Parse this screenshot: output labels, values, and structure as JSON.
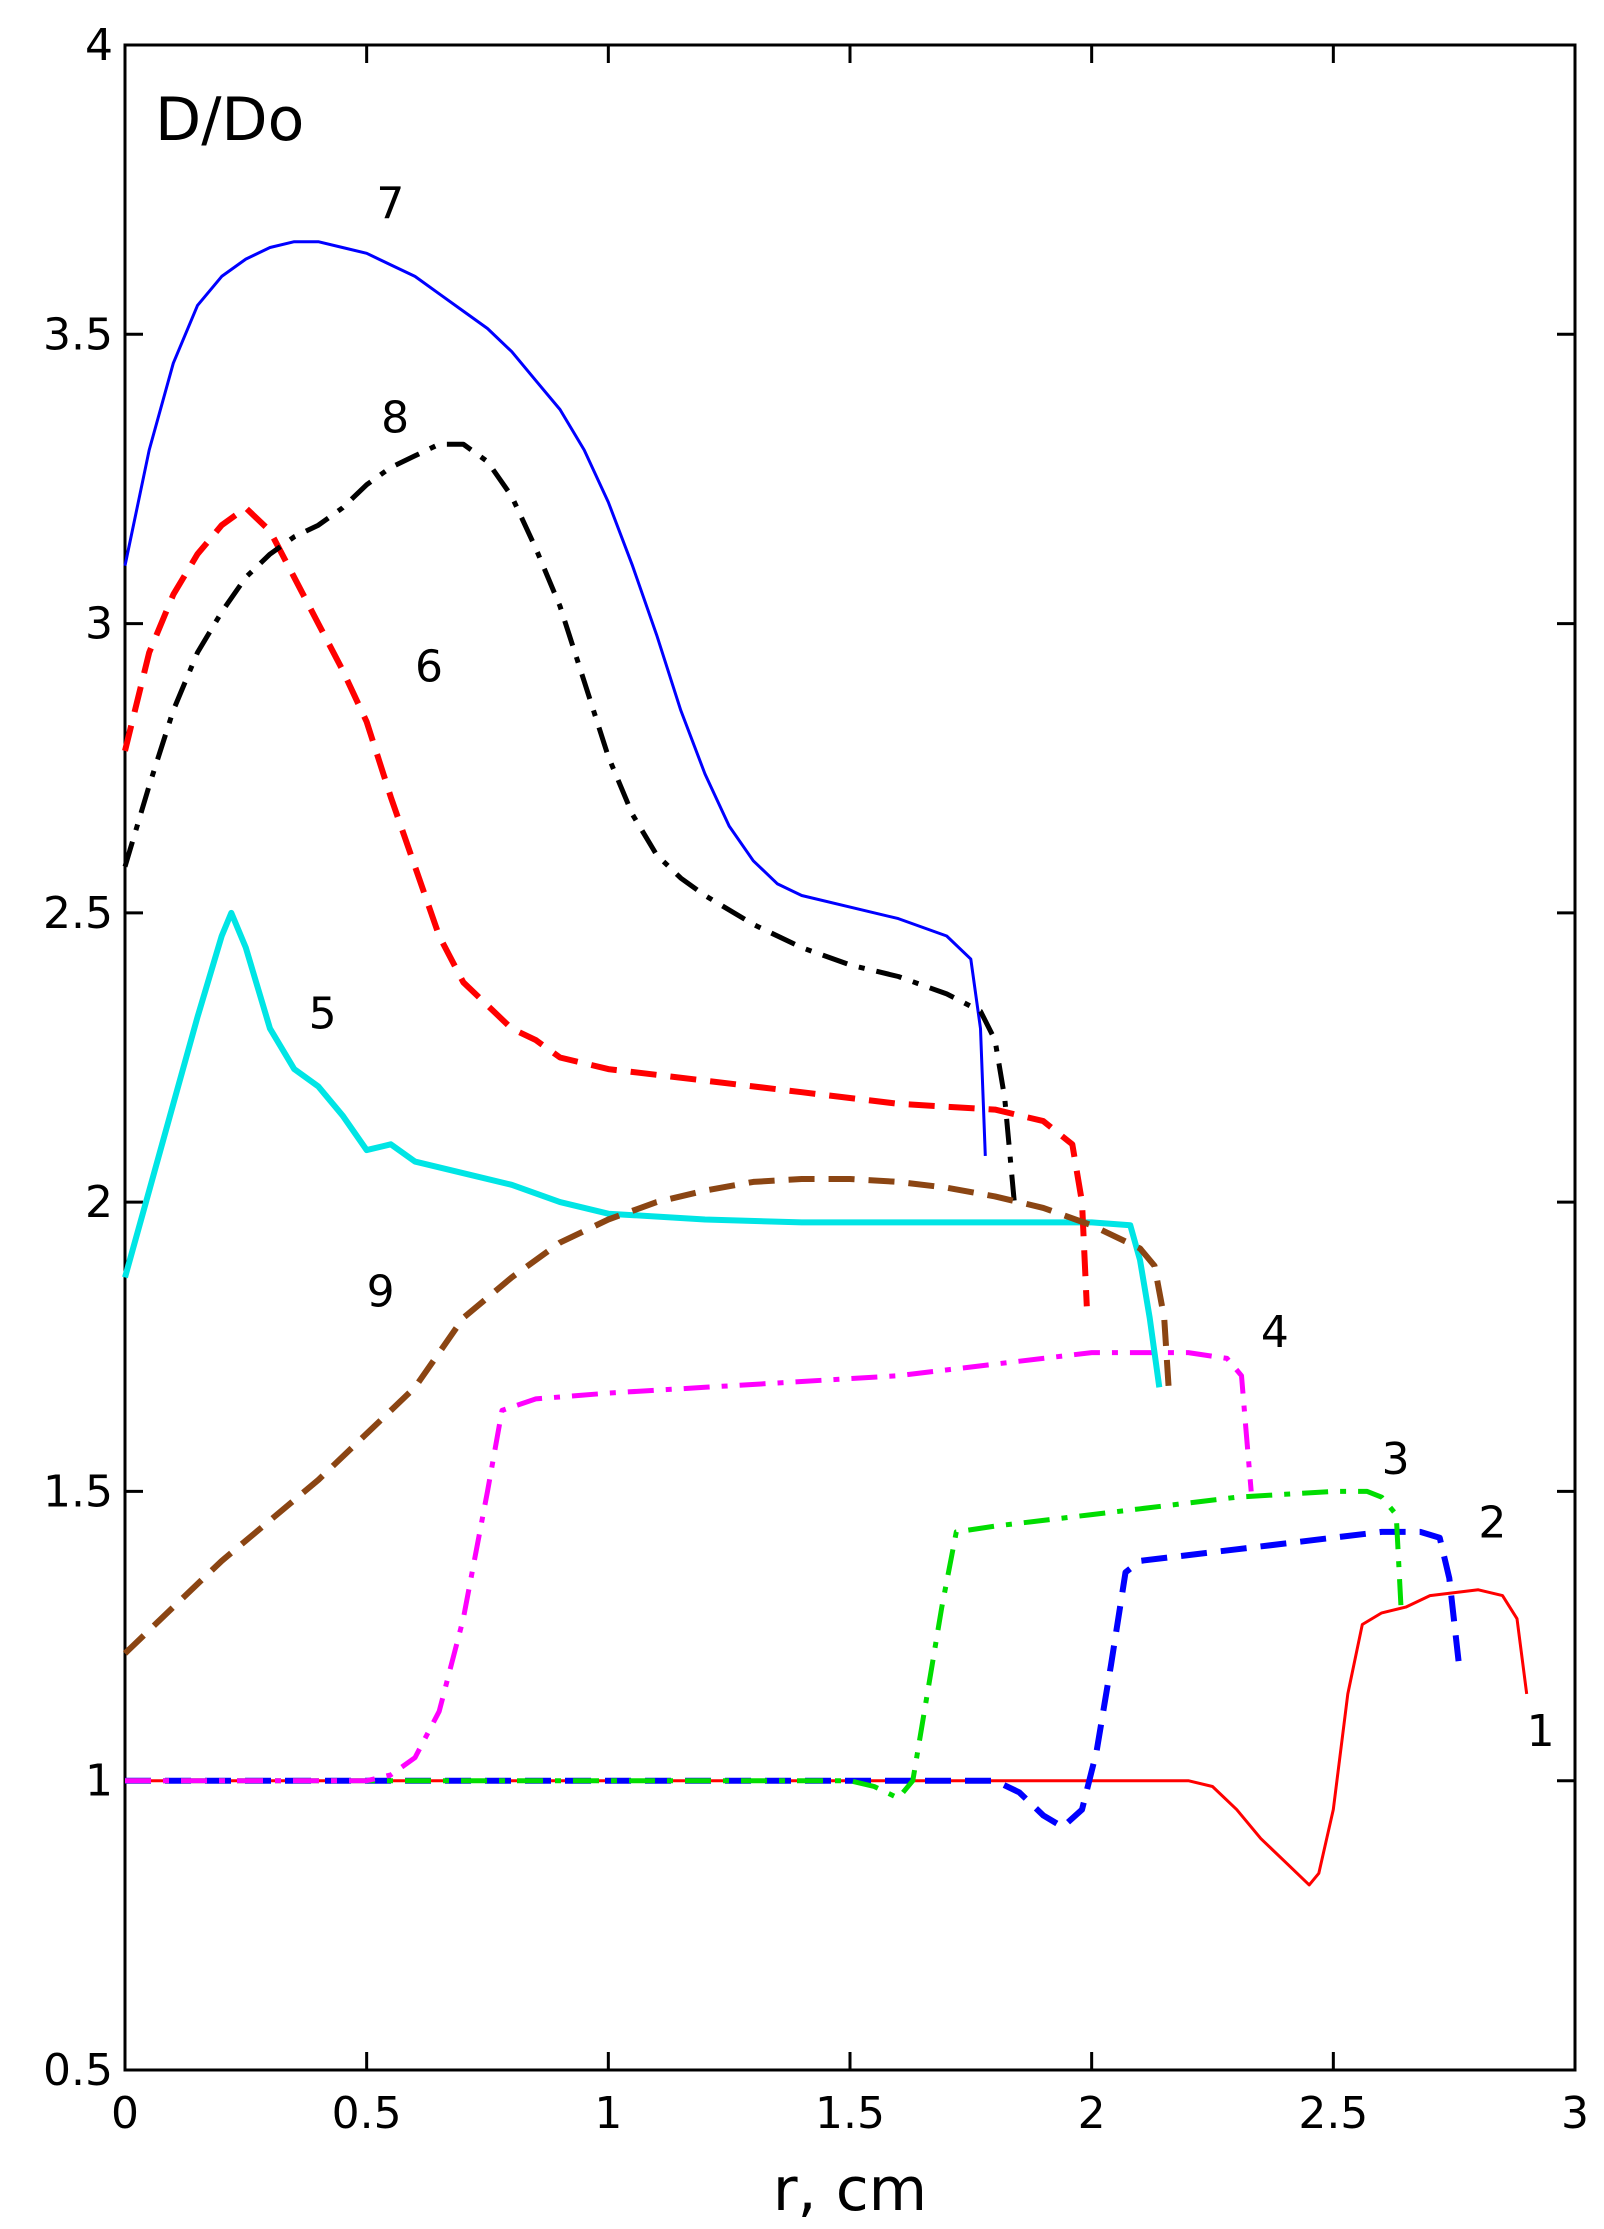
{
  "chart_data": {
    "type": "line",
    "title": "",
    "ylabel": "D/Do",
    "xlabel": "r, cm",
    "xlim": [
      0,
      3
    ],
    "ylim": [
      0.5,
      4
    ],
    "grid": false,
    "x_ticks": [
      {
        "value": 0,
        "label": "0"
      },
      {
        "value": 0.5,
        "label": "0.5"
      },
      {
        "value": 1,
        "label": "1"
      },
      {
        "value": 1.5,
        "label": "1.5"
      },
      {
        "value": 2,
        "label": "2"
      },
      {
        "value": 2.5,
        "label": "2.5"
      },
      {
        "value": 3,
        "label": "3"
      }
    ],
    "y_ticks": [
      {
        "value": 0.5,
        "label": "0.5"
      },
      {
        "value": 1,
        "label": "1"
      },
      {
        "value": 1.5,
        "label": "1.5"
      },
      {
        "value": 2,
        "label": "2"
      },
      {
        "value": 2.5,
        "label": "2.5"
      },
      {
        "value": 3,
        "label": "3"
      },
      {
        "value": 3.5,
        "label": "3.5"
      },
      {
        "value": 4,
        "label": "4"
      }
    ],
    "series": [
      {
        "label": "1",
        "color": "#ff0000",
        "dash": "solid",
        "width": 3,
        "label_pos": [
          2.9,
          1.06
        ],
        "points": [
          [
            0,
            1
          ],
          [
            0.5,
            1
          ],
          [
            1,
            1
          ],
          [
            1.5,
            1
          ],
          [
            2,
            1
          ],
          [
            2.2,
            1
          ],
          [
            2.25,
            0.99
          ],
          [
            2.3,
            0.95
          ],
          [
            2.35,
            0.9
          ],
          [
            2.4,
            0.86
          ],
          [
            2.45,
            0.82
          ],
          [
            2.47,
            0.84
          ],
          [
            2.5,
            0.95
          ],
          [
            2.53,
            1.15
          ],
          [
            2.56,
            1.27
          ],
          [
            2.6,
            1.29
          ],
          [
            2.65,
            1.3
          ],
          [
            2.7,
            1.32
          ],
          [
            2.8,
            1.33
          ],
          [
            2.85,
            1.32
          ],
          [
            2.88,
            1.28
          ],
          [
            2.9,
            1.15
          ]
        ]
      },
      {
        "label": "2",
        "color": "#0000ff",
        "dash": "dashed",
        "width": 6,
        "label_pos": [
          2.8,
          1.42
        ],
        "points": [
          [
            0,
            1
          ],
          [
            0.5,
            1
          ],
          [
            1,
            1
          ],
          [
            1.5,
            1
          ],
          [
            1.8,
            1
          ],
          [
            1.85,
            0.98
          ],
          [
            1.9,
            0.94
          ],
          [
            1.94,
            0.92
          ],
          [
            1.98,
            0.95
          ],
          [
            2.01,
            1.05
          ],
          [
            2.04,
            1.2
          ],
          [
            2.07,
            1.36
          ],
          [
            2.1,
            1.38
          ],
          [
            2.2,
            1.39
          ],
          [
            2.3,
            1.4
          ],
          [
            2.4,
            1.41
          ],
          [
            2.5,
            1.42
          ],
          [
            2.6,
            1.43
          ],
          [
            2.68,
            1.43
          ],
          [
            2.72,
            1.42
          ],
          [
            2.74,
            1.35
          ],
          [
            2.76,
            1.2
          ]
        ]
      },
      {
        "label": "3",
        "color": "#00dd00",
        "dash": "dashdot",
        "width": 5,
        "label_pos": [
          2.6,
          1.53
        ],
        "points": [
          [
            0,
            1
          ],
          [
            0.5,
            1
          ],
          [
            1,
            1
          ],
          [
            1.5,
            1
          ],
          [
            1.55,
            0.99
          ],
          [
            1.6,
            0.97
          ],
          [
            1.63,
            1.0
          ],
          [
            1.66,
            1.15
          ],
          [
            1.69,
            1.3
          ],
          [
            1.72,
            1.43
          ],
          [
            1.8,
            1.44
          ],
          [
            1.9,
            1.45
          ],
          [
            2,
            1.46
          ],
          [
            2.1,
            1.47
          ],
          [
            2.2,
            1.48
          ],
          [
            2.3,
            1.49
          ],
          [
            2.4,
            1.495
          ],
          [
            2.5,
            1.5
          ],
          [
            2.57,
            1.5
          ],
          [
            2.6,
            1.49
          ],
          [
            2.63,
            1.46
          ],
          [
            2.64,
            1.3
          ]
        ]
      },
      {
        "label": "4",
        "color": "#ff00ff",
        "dash": "dashdot",
        "width": 5,
        "label_pos": [
          2.35,
          1.75
        ],
        "points": [
          [
            0,
            1
          ],
          [
            0.3,
            1
          ],
          [
            0.5,
            1
          ],
          [
            0.55,
            1.01
          ],
          [
            0.6,
            1.04
          ],
          [
            0.65,
            1.12
          ],
          [
            0.7,
            1.28
          ],
          [
            0.75,
            1.5
          ],
          [
            0.78,
            1.64
          ],
          [
            0.85,
            1.66
          ],
          [
            1,
            1.67
          ],
          [
            1.2,
            1.68
          ],
          [
            1.4,
            1.69
          ],
          [
            1.6,
            1.7
          ],
          [
            1.8,
            1.72
          ],
          [
            2,
            1.74
          ],
          [
            2.1,
            1.74
          ],
          [
            2.2,
            1.74
          ],
          [
            2.28,
            1.73
          ],
          [
            2.31,
            1.7
          ],
          [
            2.32,
            1.6
          ],
          [
            2.33,
            1.5
          ]
        ]
      },
      {
        "label": "5",
        "color": "#00e5e5",
        "dash": "solid",
        "width": 6,
        "label_pos": [
          0.38,
          2.3
        ],
        "points": [
          [
            0,
            1.87
          ],
          [
            0.05,
            2.02
          ],
          [
            0.1,
            2.17
          ],
          [
            0.15,
            2.32
          ],
          [
            0.2,
            2.46
          ],
          [
            0.22,
            2.5
          ],
          [
            0.25,
            2.44
          ],
          [
            0.3,
            2.3
          ],
          [
            0.35,
            2.23
          ],
          [
            0.4,
            2.2
          ],
          [
            0.45,
            2.15
          ],
          [
            0.5,
            2.09
          ],
          [
            0.55,
            2.1
          ],
          [
            0.6,
            2.07
          ],
          [
            0.7,
            2.05
          ],
          [
            0.8,
            2.03
          ],
          [
            0.9,
            2.0
          ],
          [
            1,
            1.98
          ],
          [
            1.2,
            1.97
          ],
          [
            1.4,
            1.965
          ],
          [
            1.6,
            1.965
          ],
          [
            1.8,
            1.965
          ],
          [
            2,
            1.965
          ],
          [
            2.08,
            1.96
          ],
          [
            2.1,
            1.9
          ],
          [
            2.12,
            1.8
          ],
          [
            2.14,
            1.68
          ]
        ]
      },
      {
        "label": "6",
        "color": "#ff0000",
        "dash": "dashed",
        "width": 6,
        "label_pos": [
          0.6,
          2.9
        ],
        "points": [
          [
            0,
            2.78
          ],
          [
            0.05,
            2.95
          ],
          [
            0.1,
            3.05
          ],
          [
            0.15,
            3.12
          ],
          [
            0.2,
            3.17
          ],
          [
            0.25,
            3.2
          ],
          [
            0.3,
            3.16
          ],
          [
            0.35,
            3.08
          ],
          [
            0.4,
            3.0
          ],
          [
            0.45,
            2.92
          ],
          [
            0.5,
            2.83
          ],
          [
            0.55,
            2.7
          ],
          [
            0.6,
            2.58
          ],
          [
            0.65,
            2.46
          ],
          [
            0.7,
            2.38
          ],
          [
            0.75,
            2.34
          ],
          [
            0.8,
            2.3
          ],
          [
            0.85,
            2.28
          ],
          [
            0.9,
            2.25
          ],
          [
            1,
            2.23
          ],
          [
            1.2,
            2.21
          ],
          [
            1.4,
            2.19
          ],
          [
            1.6,
            2.17
          ],
          [
            1.8,
            2.16
          ],
          [
            1.9,
            2.14
          ],
          [
            1.96,
            2.1
          ],
          [
            1.98,
            2.0
          ],
          [
            1.99,
            1.82
          ]
        ]
      },
      {
        "label": "7",
        "color": "#0000ff",
        "dash": "solid",
        "width": 3,
        "label_pos": [
          0.52,
          3.7
        ],
        "points": [
          [
            0,
            3.1
          ],
          [
            0.05,
            3.3
          ],
          [
            0.1,
            3.45
          ],
          [
            0.15,
            3.55
          ],
          [
            0.2,
            3.6
          ],
          [
            0.25,
            3.63
          ],
          [
            0.3,
            3.65
          ],
          [
            0.35,
            3.66
          ],
          [
            0.4,
            3.66
          ],
          [
            0.45,
            3.65
          ],
          [
            0.5,
            3.64
          ],
          [
            0.55,
            3.62
          ],
          [
            0.6,
            3.6
          ],
          [
            0.65,
            3.57
          ],
          [
            0.7,
            3.54
          ],
          [
            0.75,
            3.51
          ],
          [
            0.8,
            3.47
          ],
          [
            0.85,
            3.42
          ],
          [
            0.9,
            3.37
          ],
          [
            0.95,
            3.3
          ],
          [
            1,
            3.21
          ],
          [
            1.05,
            3.1
          ],
          [
            1.1,
            2.98
          ],
          [
            1.15,
            2.85
          ],
          [
            1.2,
            2.74
          ],
          [
            1.25,
            2.65
          ],
          [
            1.3,
            2.59
          ],
          [
            1.35,
            2.55
          ],
          [
            1.4,
            2.53
          ],
          [
            1.5,
            2.51
          ],
          [
            1.6,
            2.49
          ],
          [
            1.7,
            2.46
          ],
          [
            1.75,
            2.42
          ],
          [
            1.77,
            2.3
          ],
          [
            1.78,
            2.08
          ]
        ]
      },
      {
        "label": "8",
        "color": "#000000",
        "dash": "dashdot",
        "width": 5,
        "label_pos": [
          0.53,
          3.33
        ],
        "points": [
          [
            0,
            2.58
          ],
          [
            0.05,
            2.72
          ],
          [
            0.1,
            2.85
          ],
          [
            0.15,
            2.95
          ],
          [
            0.2,
            3.02
          ],
          [
            0.25,
            3.08
          ],
          [
            0.3,
            3.12
          ],
          [
            0.35,
            3.15
          ],
          [
            0.4,
            3.17
          ],
          [
            0.45,
            3.2
          ],
          [
            0.5,
            3.24
          ],
          [
            0.55,
            3.27
          ],
          [
            0.6,
            3.29
          ],
          [
            0.65,
            3.31
          ],
          [
            0.7,
            3.31
          ],
          [
            0.75,
            3.28
          ],
          [
            0.8,
            3.22
          ],
          [
            0.85,
            3.13
          ],
          [
            0.9,
            3.03
          ],
          [
            0.95,
            2.9
          ],
          [
            1,
            2.77
          ],
          [
            1.05,
            2.67
          ],
          [
            1.1,
            2.6
          ],
          [
            1.15,
            2.56
          ],
          [
            1.2,
            2.53
          ],
          [
            1.3,
            2.48
          ],
          [
            1.4,
            2.44
          ],
          [
            1.5,
            2.41
          ],
          [
            1.6,
            2.39
          ],
          [
            1.7,
            2.36
          ],
          [
            1.77,
            2.33
          ],
          [
            1.8,
            2.28
          ],
          [
            1.82,
            2.18
          ],
          [
            1.84,
            2.0
          ]
        ]
      },
      {
        "label": "9",
        "color": "#8b4513",
        "dash": "dashed",
        "width": 6,
        "label_pos": [
          0.5,
          1.82
        ],
        "points": [
          [
            0,
            1.22
          ],
          [
            0.1,
            1.3
          ],
          [
            0.2,
            1.38
          ],
          [
            0.3,
            1.45
          ],
          [
            0.4,
            1.52
          ],
          [
            0.5,
            1.6
          ],
          [
            0.6,
            1.68
          ],
          [
            0.65,
            1.74
          ],
          [
            0.7,
            1.8
          ],
          [
            0.8,
            1.87
          ],
          [
            0.9,
            1.93
          ],
          [
            1,
            1.97
          ],
          [
            1.1,
            2.0
          ],
          [
            1.2,
            2.02
          ],
          [
            1.3,
            2.035
          ],
          [
            1.4,
            2.04
          ],
          [
            1.5,
            2.04
          ],
          [
            1.6,
            2.035
          ],
          [
            1.7,
            2.025
          ],
          [
            1.8,
            2.01
          ],
          [
            1.9,
            1.99
          ],
          [
            2,
            1.96
          ],
          [
            2.1,
            1.92
          ],
          [
            2.13,
            1.89
          ],
          [
            2.15,
            1.8
          ],
          [
            2.16,
            1.67
          ]
        ]
      }
    ]
  }
}
